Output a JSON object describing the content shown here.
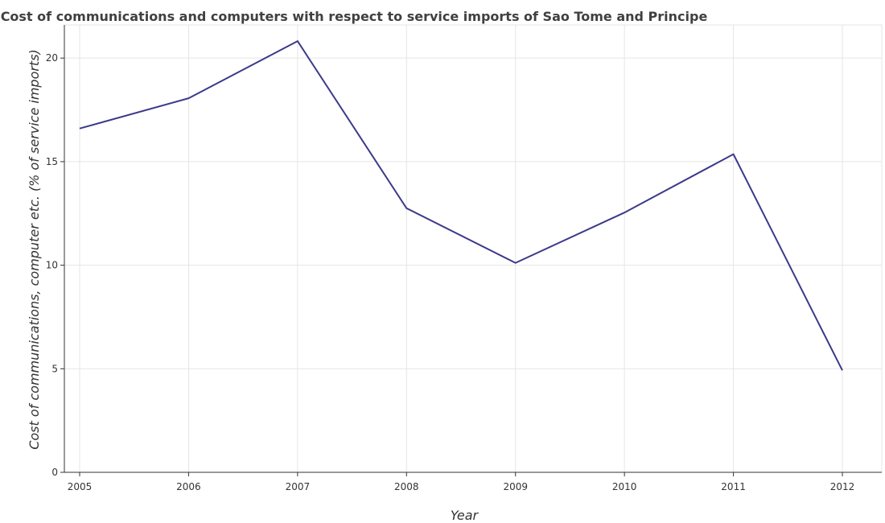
{
  "chart_data": {
    "type": "line",
    "title": "Cost of communications and computers with respect to service imports of Sao Tome and Principe",
    "xlabel": "Year",
    "ylabel": "Cost of communications, computer etc. (% of service imports)",
    "categories": [
      "2005",
      "2006",
      "2007",
      "2008",
      "2009",
      "2010",
      "2011",
      "2012"
    ],
    "values": [
      16.6,
      18.06,
      20.82,
      12.75,
      10.11,
      12.54,
      15.36,
      4.92
    ],
    "yticks": [
      "0",
      "5",
      "10",
      "15",
      "20"
    ],
    "ylim": [
      0,
      21.6
    ],
    "grid": true,
    "line_color": "#3b3a8a"
  }
}
